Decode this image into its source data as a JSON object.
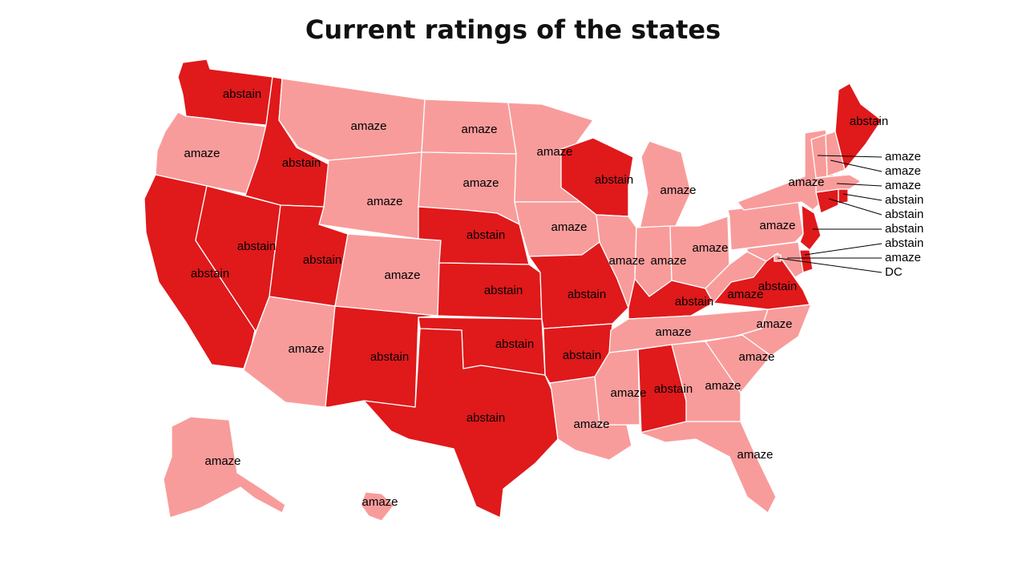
{
  "title": "Current ratings of the states",
  "colors": {
    "abstain": "#e0191b",
    "amaze": "#f89c9b",
    "border": "#ffffff"
  },
  "states": [
    {
      "id": "WA",
      "rating": "abstain"
    },
    {
      "id": "OR",
      "rating": "amaze"
    },
    {
      "id": "CA",
      "rating": "abstain"
    },
    {
      "id": "ID",
      "rating": "abstain"
    },
    {
      "id": "NV",
      "rating": "abstain"
    },
    {
      "id": "MT",
      "rating": "amaze"
    },
    {
      "id": "WY",
      "rating": "amaze"
    },
    {
      "id": "UT",
      "rating": "abstain"
    },
    {
      "id": "AZ",
      "rating": "amaze"
    },
    {
      "id": "CO",
      "rating": "amaze"
    },
    {
      "id": "NM",
      "rating": "abstain"
    },
    {
      "id": "ND",
      "rating": "amaze"
    },
    {
      "id": "SD",
      "rating": "amaze"
    },
    {
      "id": "NE",
      "rating": "abstain"
    },
    {
      "id": "KS",
      "rating": "abstain"
    },
    {
      "id": "OK",
      "rating": "abstain"
    },
    {
      "id": "TX",
      "rating": "abstain"
    },
    {
      "id": "MN",
      "rating": "amaze"
    },
    {
      "id": "IA",
      "rating": "amaze"
    },
    {
      "id": "MO",
      "rating": "abstain"
    },
    {
      "id": "AR",
      "rating": "abstain"
    },
    {
      "id": "LA",
      "rating": "amaze"
    },
    {
      "id": "WI",
      "rating": "abstain"
    },
    {
      "id": "IL",
      "rating": "amaze"
    },
    {
      "id": "MI",
      "rating": "amaze"
    },
    {
      "id": "IN",
      "rating": "amaze"
    },
    {
      "id": "OH",
      "rating": "amaze"
    },
    {
      "id": "KY",
      "rating": "abstain"
    },
    {
      "id": "TN",
      "rating": "amaze"
    },
    {
      "id": "MS",
      "rating": "amaze"
    },
    {
      "id": "AL",
      "rating": "abstain"
    },
    {
      "id": "GA",
      "rating": "amaze"
    },
    {
      "id": "FL",
      "rating": "amaze"
    },
    {
      "id": "SC",
      "rating": "amaze"
    },
    {
      "id": "NC",
      "rating": "amaze"
    },
    {
      "id": "VA",
      "rating": "abstain"
    },
    {
      "id": "WV",
      "rating": "amaze"
    },
    {
      "id": "PA",
      "rating": "amaze"
    },
    {
      "id": "NY",
      "rating": "amaze"
    },
    {
      "id": "NJ",
      "rating": "abstain"
    },
    {
      "id": "DE",
      "rating": "abstain"
    },
    {
      "id": "MD",
      "rating": "amaze"
    },
    {
      "id": "DC",
      "rating": "amaze"
    },
    {
      "id": "CT",
      "rating": "abstain"
    },
    {
      "id": "RI",
      "rating": "abstain"
    },
    {
      "id": "MA",
      "rating": "amaze"
    },
    {
      "id": "VT",
      "rating": "amaze"
    },
    {
      "id": "NH",
      "rating": "amaze"
    },
    {
      "id": "ME",
      "rating": "abstain"
    },
    {
      "id": "AK",
      "rating": "amaze"
    },
    {
      "id": "HI",
      "rating": "amaze"
    }
  ],
  "callouts": [
    {
      "id": "VT",
      "label": "amaze"
    },
    {
      "id": "NH",
      "label": "amaze"
    },
    {
      "id": "MA",
      "label": "amaze"
    },
    {
      "id": "RI",
      "label": "abstain"
    },
    {
      "id": "CT",
      "label": "abstain"
    },
    {
      "id": "NJ",
      "label": "abstain"
    },
    {
      "id": "DE",
      "label": "abstain"
    },
    {
      "id": "MD",
      "label": "amaze"
    },
    {
      "id": "DC",
      "label": "DC"
    }
  ]
}
